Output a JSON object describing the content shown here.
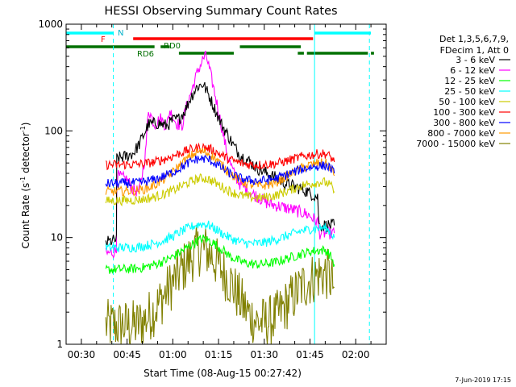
{
  "chart_data": {
    "type": "line",
    "title": "HESSI Observing Summary Count Rates",
    "xlabel": "Start Time (08-Aug-15 00:27:42)",
    "ylabel": "Count Rate (s⁻¹ detector⁻¹)",
    "ylabel_parts": [
      "Count Rate (s",
      "-1",
      " detector",
      "-1",
      ")"
    ],
    "yscale": "log",
    "ylim": [
      1,
      1000
    ],
    "xlim_minutes": [
      25,
      130
    ],
    "x_ticks": [
      {
        "min": 30,
        "label": "00:30"
      },
      {
        "min": 45,
        "label": "00:45"
      },
      {
        "min": 60,
        "label": "01:00"
      },
      {
        "min": 75,
        "label": "01:15"
      },
      {
        "min": 90,
        "label": "01:30"
      },
      {
        "min": 105,
        "label": "01:45"
      },
      {
        "min": 120,
        "label": "02:00"
      }
    ],
    "y_ticks": [
      {
        "val": 1,
        "label": "1"
      },
      {
        "val": 10,
        "label": "10"
      },
      {
        "val": 100,
        "label": "100"
      },
      {
        "val": 1000,
        "label": "1000"
      }
    ],
    "grid": false,
    "legend_position": "right",
    "legend_header": [
      "Det 1,3,5,6,7,9,",
      "FDecim 1, Att 0"
    ],
    "series": [
      {
        "name": "3 - 6 keV",
        "color": "#000000",
        "x": [
          38,
          41.5,
          41.6,
          45,
          47,
          49,
          52,
          55,
          58,
          60,
          62,
          64,
          66,
          68,
          70,
          72,
          74,
          76,
          78,
          80,
          82,
          85,
          88,
          91,
          94,
          97,
          100,
          103,
          105,
          107.5,
          108,
          111,
          113
        ],
        "y": [
          9,
          9.5,
          55,
          58,
          62,
          75,
          115,
          118,
          112,
          125,
          130,
          155,
          210,
          260,
          275,
          210,
          155,
          115,
          92,
          72,
          60,
          52,
          44,
          40,
          36,
          32,
          30,
          28,
          26,
          24,
          13,
          13,
          13
        ]
      },
      {
        "name": "6 - 12 keV",
        "color": "#ff00ff",
        "x": [
          38,
          41.5,
          41.6,
          45,
          47,
          49,
          51,
          52,
          54,
          56,
          58,
          59,
          61,
          63,
          64,
          66,
          68,
          70,
          71,
          72,
          74,
          76,
          78,
          80,
          82,
          85,
          88,
          91,
          94,
          97,
          100,
          103,
          105,
          107.5,
          108,
          111,
          113
        ],
        "y": [
          7,
          7.5,
          38,
          35,
          28,
          27,
          60,
          160,
          115,
          130,
          110,
          155,
          120,
          110,
          150,
          230,
          350,
          480,
          500,
          380,
          210,
          110,
          58,
          40,
          32,
          27,
          24,
          21,
          20,
          19,
          18,
          17,
          16,
          14,
          11,
          11,
          11
        ]
      },
      {
        "name": "12 - 25 keV",
        "color": "#00ff00",
        "x": [
          38,
          48,
          51,
          54,
          57,
          60,
          63,
          66,
          68,
          70,
          72,
          74,
          76,
          79,
          82,
          85,
          88,
          91,
          94,
          97,
          100,
          102,
          105,
          108,
          110,
          111,
          112,
          113
        ],
        "y": [
          5,
          5.1,
          5.3,
          5.6,
          6,
          6.6,
          7.5,
          8.5,
          9.3,
          9.8,
          9.4,
          8.6,
          7.8,
          6.6,
          6,
          5.7,
          5.6,
          5.7,
          5.9,
          6.3,
          6.7,
          7,
          7.4,
          7.6,
          7.6,
          7.2,
          6.5,
          5.6
        ]
      },
      {
        "name": "25 - 50 keV",
        "color": "#00ffff",
        "x": [
          38,
          48,
          51,
          54,
          57,
          60,
          63,
          66,
          68,
          70,
          72,
          74,
          76,
          79,
          82,
          85,
          88,
          91,
          94,
          97,
          100,
          102,
          105,
          108,
          110,
          111,
          112,
          113
        ],
        "y": [
          8,
          8.1,
          8.4,
          8.8,
          9.4,
          10.3,
          11.5,
          12.6,
          13.2,
          13.5,
          13,
          12,
          11,
          9.8,
          9.1,
          8.8,
          8.8,
          9.1,
          9.6,
          10.3,
          11,
          11.5,
          12,
          12.3,
          12.3,
          11.8,
          11,
          10
        ]
      },
      {
        "name": "50 - 100 keV",
        "color": "#cccc00",
        "x": [
          38,
          48,
          51,
          54,
          57,
          60,
          63,
          66,
          68,
          70,
          72,
          74,
          76,
          79,
          82,
          85,
          88,
          91,
          94,
          97,
          100,
          102,
          105,
          108,
          110,
          111,
          112,
          113
        ],
        "y": [
          22,
          22.5,
          23,
          24,
          25.5,
          27.5,
          30.5,
          33.5,
          35.5,
          36,
          35,
          32.5,
          30,
          27,
          25,
          24,
          23.5,
          24,
          25,
          27,
          29,
          30.5,
          32,
          33,
          33,
          32,
          30,
          27
        ]
      },
      {
        "name": "100 - 300 keV",
        "color": "#ff0000",
        "x": [
          38,
          48,
          51,
          54,
          57,
          60,
          63,
          66,
          68,
          70,
          72,
          74,
          76,
          79,
          82,
          85,
          88,
          91,
          94,
          97,
          100,
          102,
          105,
          108,
          110,
          111,
          112,
          113
        ],
        "y": [
          48,
          48.5,
          49.5,
          51,
          54,
          58,
          63,
          67,
          69,
          70,
          68,
          64,
          59,
          53.5,
          50,
          48.5,
          48,
          48.5,
          49.5,
          52,
          55,
          57,
          59.5,
          61,
          61,
          59,
          56,
          51
        ]
      },
      {
        "name": "300 - 800 keV",
        "color": "#0000ff",
        "x": [
          38,
          48,
          51,
          54,
          57,
          60,
          63,
          66,
          68,
          70,
          72,
          74,
          76,
          79,
          82,
          85,
          88,
          91,
          94,
          97,
          100,
          102,
          105,
          108,
          110,
          111,
          112,
          113
        ],
        "y": [
          32,
          32.5,
          33.5,
          35,
          37.5,
          41,
          46,
          51.5,
          54.5,
          55,
          53.5,
          49.5,
          45,
          39.5,
          36,
          34.5,
          34,
          34.5,
          36,
          38.5,
          41.5,
          43.5,
          45.5,
          47,
          47,
          46,
          44,
          40
        ]
      },
      {
        "name": "800 - 7000 keV",
        "color": "#ff9900",
        "x": [
          38,
          48,
          51,
          54,
          57,
          60,
          63,
          66,
          68,
          70,
          72,
          74,
          76,
          79,
          82,
          85,
          88,
          91,
          94,
          97,
          100,
          102,
          105,
          108,
          110,
          111,
          112,
          113
        ],
        "y": [
          27,
          27.5,
          28.5,
          31,
          35,
          41,
          50,
          58.5,
          63,
          64,
          61,
          55,
          48,
          39.5,
          34,
          31.5,
          30.5,
          31,
          33,
          37,
          41.5,
          44.5,
          48,
          50,
          50,
          48,
          44,
          38
        ]
      },
      {
        "name": "7000 - 15000 keV",
        "color": "#808000",
        "x": [
          38,
          48,
          51,
          54,
          57,
          60,
          63,
          66,
          68,
          70,
          72,
          74,
          76,
          79,
          82,
          85,
          88,
          91,
          94,
          97,
          100,
          102,
          105,
          108,
          110,
          111,
          112,
          113
        ],
        "y": [
          1.5,
          1.5,
          1.7,
          2.1,
          2.8,
          3.8,
          5,
          6.5,
          7.5,
          7.8,
          7.2,
          6,
          5,
          3.8,
          2.6,
          1.9,
          1.6,
          1.6,
          1.8,
          2.3,
          2.9,
          3.4,
          4,
          4.5,
          4.6,
          4.4,
          4,
          3.4
        ]
      }
    ],
    "annotations": [
      {
        "text": "N",
        "color": "#00b0c8"
      },
      {
        "text": "F",
        "color": "#ff0000"
      },
      {
        "text": "RD0",
        "color": "#007000"
      },
      {
        "text": "RD6",
        "color": "#007000"
      }
    ],
    "status_bars": [
      {
        "label": "night",
        "color": "#00ffff",
        "segments": [
          [
            25,
            40.5
          ],
          [
            106.5,
            125
          ]
        ]
      },
      {
        "label": "flare",
        "color": "#ff0000",
        "segments": [
          [
            47,
            106
          ]
        ]
      },
      {
        "label": "rd0",
        "color": "#007000",
        "segments": [
          [
            25,
            54
          ],
          [
            56,
            59
          ],
          [
            82,
            102
          ]
        ]
      },
      {
        "label": "rd6",
        "color": "#007000",
        "segments": [
          [
            62,
            80
          ],
          [
            101,
            103
          ],
          [
            104,
            124
          ],
          [
            125,
            126
          ]
        ]
      }
    ],
    "vlines": [
      {
        "min": 40.5,
        "color": "#00ffff",
        "style": "dashed"
      },
      {
        "min": 106.5,
        "color": "#00ffff",
        "style": "solid"
      },
      {
        "min": 124.5,
        "color": "#00ffff",
        "style": "dashed"
      }
    ],
    "footer_date": "7-Jun-2019 17:15"
  }
}
